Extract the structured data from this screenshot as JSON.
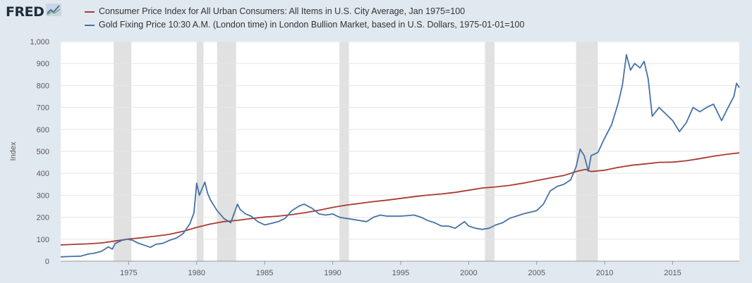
{
  "brand": {
    "name": "FRED",
    "icon": "fred-chart-icon"
  },
  "chart_data": {
    "type": "line",
    "title": "",
    "xlabel": "",
    "ylabel": "Index",
    "xlim": [
      1970.0,
      2019.9
    ],
    "ylim": [
      0,
      1000
    ],
    "yticks": [
      0,
      100,
      200,
      300,
      400,
      500,
      600,
      700,
      800,
      900,
      1000
    ],
    "ytick_labels": [
      "0",
      "100",
      "200",
      "300",
      "400",
      "500",
      "600",
      "700",
      "800",
      "900",
      "1,000"
    ],
    "xticks": [
      1975,
      1980,
      1985,
      1990,
      1995,
      2000,
      2005,
      2010,
      2015
    ],
    "xtick_labels": [
      "1975",
      "1980",
      "1985",
      "1990",
      "1995",
      "2000",
      "2005",
      "2010",
      "2015"
    ],
    "grid": true,
    "legend": "top-left",
    "recessions": [
      [
        1973.9,
        1975.2
      ],
      [
        1980.0,
        1980.5
      ],
      [
        1981.5,
        1982.9
      ],
      [
        1990.5,
        1991.2
      ],
      [
        2001.2,
        2001.9
      ],
      [
        2007.9,
        2009.5
      ]
    ],
    "series": [
      {
        "name": "Consumer Price Index for All Urban Consumers: All Items in U.S. City Average, Jan 1975=100",
        "color": "#a93a32",
        "points": [
          [
            1970.0,
            74
          ],
          [
            1972,
            79
          ],
          [
            1973,
            83
          ],
          [
            1974,
            92
          ],
          [
            1975,
            101
          ],
          [
            1976,
            107
          ],
          [
            1977,
            114
          ],
          [
            1978,
            122
          ],
          [
            1979,
            136
          ],
          [
            1980,
            154
          ],
          [
            1981,
            169
          ],
          [
            1982,
            180
          ],
          [
            1983,
            186
          ],
          [
            1984,
            194
          ],
          [
            1985,
            201
          ],
          [
            1986,
            205
          ],
          [
            1987,
            212
          ],
          [
            1988,
            221
          ],
          [
            1989,
            232
          ],
          [
            1990,
            245
          ],
          [
            1991,
            255
          ],
          [
            1992,
            263
          ],
          [
            1993,
            271
          ],
          [
            1994,
            278
          ],
          [
            1995,
            286
          ],
          [
            1996,
            294
          ],
          [
            1997,
            301
          ],
          [
            1998,
            306
          ],
          [
            1999,
            313
          ],
          [
            2000,
            323
          ],
          [
            2001,
            333
          ],
          [
            2002,
            338
          ],
          [
            2003,
            345
          ],
          [
            2004,
            355
          ],
          [
            2005,
            367
          ],
          [
            2006,
            379
          ],
          [
            2007,
            390
          ],
          [
            2008,
            410
          ],
          [
            2008.6,
            418
          ],
          [
            2009.0,
            408
          ],
          [
            2010,
            414
          ],
          [
            2011,
            427
          ],
          [
            2012,
            437
          ],
          [
            2013,
            443
          ],
          [
            2014,
            450
          ],
          [
            2015,
            451
          ],
          [
            2016,
            457
          ],
          [
            2017,
            467
          ],
          [
            2018,
            478
          ],
          [
            2019,
            487
          ],
          [
            2019.9,
            493
          ]
        ]
      },
      {
        "name": "Gold Fixing Price 10:30 A.M. (London time) in London Bullion Market, based in U.S. Dollars, 1975-01-01=100",
        "color": "#4572a7",
        "points": [
          [
            1970.0,
            20
          ],
          [
            1971,
            22
          ],
          [
            1971.5,
            23
          ],
          [
            1972,
            32
          ],
          [
            1972.5,
            37
          ],
          [
            1973,
            45
          ],
          [
            1973.5,
            65
          ],
          [
            1973.8,
            55
          ],
          [
            1974,
            80
          ],
          [
            1974.5,
            95
          ],
          [
            1974.9,
            100
          ],
          [
            1975.3,
            95
          ],
          [
            1975.7,
            82
          ],
          [
            1976,
            76
          ],
          [
            1976.6,
            63
          ],
          [
            1977,
            77
          ],
          [
            1977.5,
            81
          ],
          [
            1978,
            95
          ],
          [
            1978.5,
            105
          ],
          [
            1979,
            125
          ],
          [
            1979.5,
            170
          ],
          [
            1979.8,
            220
          ],
          [
            1980.0,
            355
          ],
          [
            1980.2,
            300
          ],
          [
            1980.4,
            330
          ],
          [
            1980.6,
            360
          ],
          [
            1980.8,
            310
          ],
          [
            1981,
            280
          ],
          [
            1981.5,
            230
          ],
          [
            1982,
            195
          ],
          [
            1982.5,
            175
          ],
          [
            1982.8,
            225
          ],
          [
            1983,
            260
          ],
          [
            1983.2,
            235
          ],
          [
            1983.6,
            215
          ],
          [
            1984,
            205
          ],
          [
            1984.5,
            180
          ],
          [
            1985,
            165
          ],
          [
            1985.5,
            172
          ],
          [
            1986,
            180
          ],
          [
            1986.5,
            195
          ],
          [
            1987,
            230
          ],
          [
            1987.5,
            250
          ],
          [
            1987.9,
            260
          ],
          [
            1988.5,
            240
          ],
          [
            1989,
            215
          ],
          [
            1989.5,
            210
          ],
          [
            1990,
            215
          ],
          [
            1990.5,
            200
          ],
          [
            1991,
            195
          ],
          [
            1991.5,
            190
          ],
          [
            1992,
            185
          ],
          [
            1992.5,
            180
          ],
          [
            1993,
            200
          ],
          [
            1993.5,
            210
          ],
          [
            1994,
            205
          ],
          [
            1995,
            205
          ],
          [
            1996,
            210
          ],
          [
            1996.5,
            200
          ],
          [
            1997,
            185
          ],
          [
            1997.5,
            175
          ],
          [
            1998,
            160
          ],
          [
            1998.5,
            160
          ],
          [
            1999,
            150
          ],
          [
            1999.7,
            180
          ],
          [
            2000,
            160
          ],
          [
            2000.5,
            150
          ],
          [
            2001,
            145
          ],
          [
            2001.5,
            150
          ],
          [
            2002,
            165
          ],
          [
            2002.5,
            175
          ],
          [
            2003,
            195
          ],
          [
            2004,
            215
          ],
          [
            2005,
            230
          ],
          [
            2005.5,
            260
          ],
          [
            2006,
            320
          ],
          [
            2006.5,
            340
          ],
          [
            2007,
            350
          ],
          [
            2007.5,
            370
          ],
          [
            2007.9,
            430
          ],
          [
            2008.2,
            510
          ],
          [
            2008.5,
            480
          ],
          [
            2008.8,
            410
          ],
          [
            2009,
            480
          ],
          [
            2009.5,
            495
          ],
          [
            2010,
            560
          ],
          [
            2010.5,
            620
          ],
          [
            2011,
            720
          ],
          [
            2011.3,
            800
          ],
          [
            2011.6,
            940
          ],
          [
            2011.9,
            870
          ],
          [
            2012.2,
            900
          ],
          [
            2012.6,
            880
          ],
          [
            2012.9,
            910
          ],
          [
            2013.2,
            830
          ],
          [
            2013.5,
            660
          ],
          [
            2014,
            700
          ],
          [
            2014.5,
            670
          ],
          [
            2015,
            640
          ],
          [
            2015.5,
            590
          ],
          [
            2016,
            630
          ],
          [
            2016.5,
            700
          ],
          [
            2017,
            680
          ],
          [
            2017.5,
            700
          ],
          [
            2018,
            715
          ],
          [
            2018.6,
            640
          ],
          [
            2019,
            690
          ],
          [
            2019.5,
            750
          ],
          [
            2019.7,
            810
          ],
          [
            2019.9,
            790
          ]
        ]
      }
    ]
  }
}
